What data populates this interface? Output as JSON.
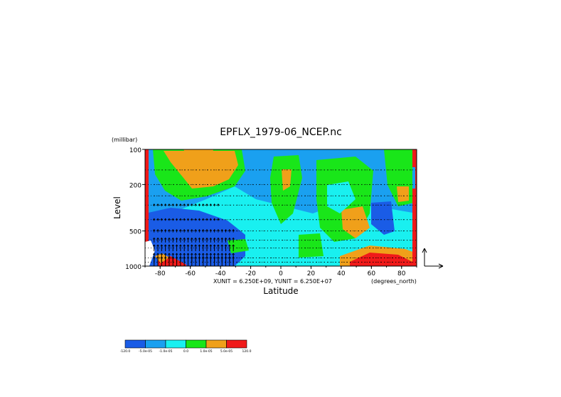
{
  "chart_data": {
    "type": "heatmap",
    "title": "EPFLX_1979-06_NCEP.nc",
    "xlabel": "Latitude",
    "ylabel": "Level",
    "yunit_label": "(millibar)",
    "xunit_label": "(degrees_north)",
    "vector_scale_label": "XUNIT = 6.250E+09, YUNIT = 6.250E+07",
    "xlim": [
      -90,
      90
    ],
    "ylim": [
      1000,
      100
    ],
    "y_scale": "log",
    "x_ticks": [
      -80,
      -60,
      -40,
      -20,
      0,
      20,
      40,
      60,
      80
    ],
    "x_tick_labels": [
      "-80",
      "-60",
      "-40",
      "-20",
      "0",
      "20",
      "40",
      "60",
      "80"
    ],
    "y_ticks": [
      100,
      200,
      500,
      1000
    ],
    "y_tick_labels": [
      "100",
      "200",
      "500",
      "1000"
    ],
    "grid": "dotted",
    "colorbar": {
      "colors": [
        "#1a5ce6",
        "#1aa0f0",
        "#19f0f0",
        "#19e619",
        "#f0a01a",
        "#f01a1a"
      ],
      "labels": [
        "-120.0",
        "-5.0e-05",
        "-1.0e-05",
        "0.0",
        "1.0e-05",
        "5.0e-05",
        "120.0"
      ]
    },
    "field_levels": [
      "#1a5ce6",
      "#1aa0f0",
      "#19f0f0",
      "#19e619",
      "#f0a01a",
      "#f01a1a"
    ]
  }
}
